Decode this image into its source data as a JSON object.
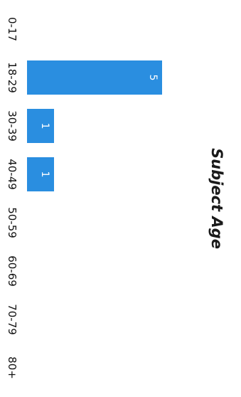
{
  "chart_data": {
    "type": "bar",
    "orientation": "horizontal",
    "title": "Subject Age",
    "xlabel": "",
    "ylabel": "",
    "categories": [
      "0-17",
      "18-29",
      "30-39",
      "40-49",
      "50-59",
      "60-69",
      "70-79",
      "80+"
    ],
    "values": [
      0,
      5,
      1,
      1,
      0,
      0,
      0,
      0
    ],
    "data_labels": [
      "",
      "5",
      "1",
      "1",
      "",
      "",
      "",
      ""
    ],
    "xlim": [
      0,
      6
    ],
    "grid": false,
    "legend": "none",
    "bar_color": "#2a8ee0",
    "label_color": "#ffffff"
  }
}
